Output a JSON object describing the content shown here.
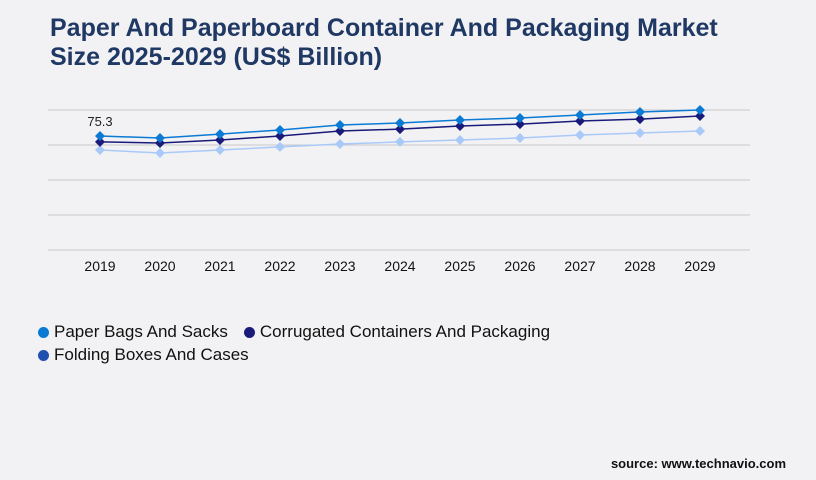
{
  "title": "Paper And Paperboard Container And Packaging Market Size 2025-2029 (US$ Billion)",
  "source": "source: www.technavio.com",
  "chart_data": {
    "type": "line",
    "title": "Paper And Paperboard Container And Packaging Market Size 2025-2029 (US$ Billion)",
    "categories": [
      "2019",
      "2020",
      "2021",
      "2022",
      "2023",
      "2024",
      "2025",
      "2026",
      "2027",
      "2028",
      "2029"
    ],
    "ylim": [
      0,
      92.5
    ],
    "grid": true,
    "legend_position": "bottom-left",
    "annotations": [
      {
        "category": "2019",
        "series": "Paper Bags And Sacks",
        "text": "75.3"
      }
    ],
    "series": [
      {
        "name": "Paper Bags And Sacks",
        "color": "#0a7ad4",
        "legend_color": "#0a7ad4",
        "values": [
          75.3,
          74.0,
          76.6,
          79.3,
          82.6,
          83.9,
          85.9,
          87.2,
          89.2,
          91.2,
          92.5
        ]
      },
      {
        "name": "Corrugated Containers And Packaging",
        "color": "#1a1a7a",
        "legend_color": "#1a1a7a",
        "values": [
          71.4,
          70.7,
          72.7,
          75.3,
          78.6,
          79.9,
          81.9,
          83.2,
          85.2,
          86.5,
          88.5
        ]
      },
      {
        "name": "Folding Boxes And Cases",
        "color": "#a9c9f9",
        "legend_color": "#1f4fb0",
        "values": [
          66.1,
          64.1,
          66.1,
          68.1,
          70.0,
          71.4,
          72.7,
          74.0,
          76.0,
          77.3,
          78.6
        ]
      }
    ]
  }
}
